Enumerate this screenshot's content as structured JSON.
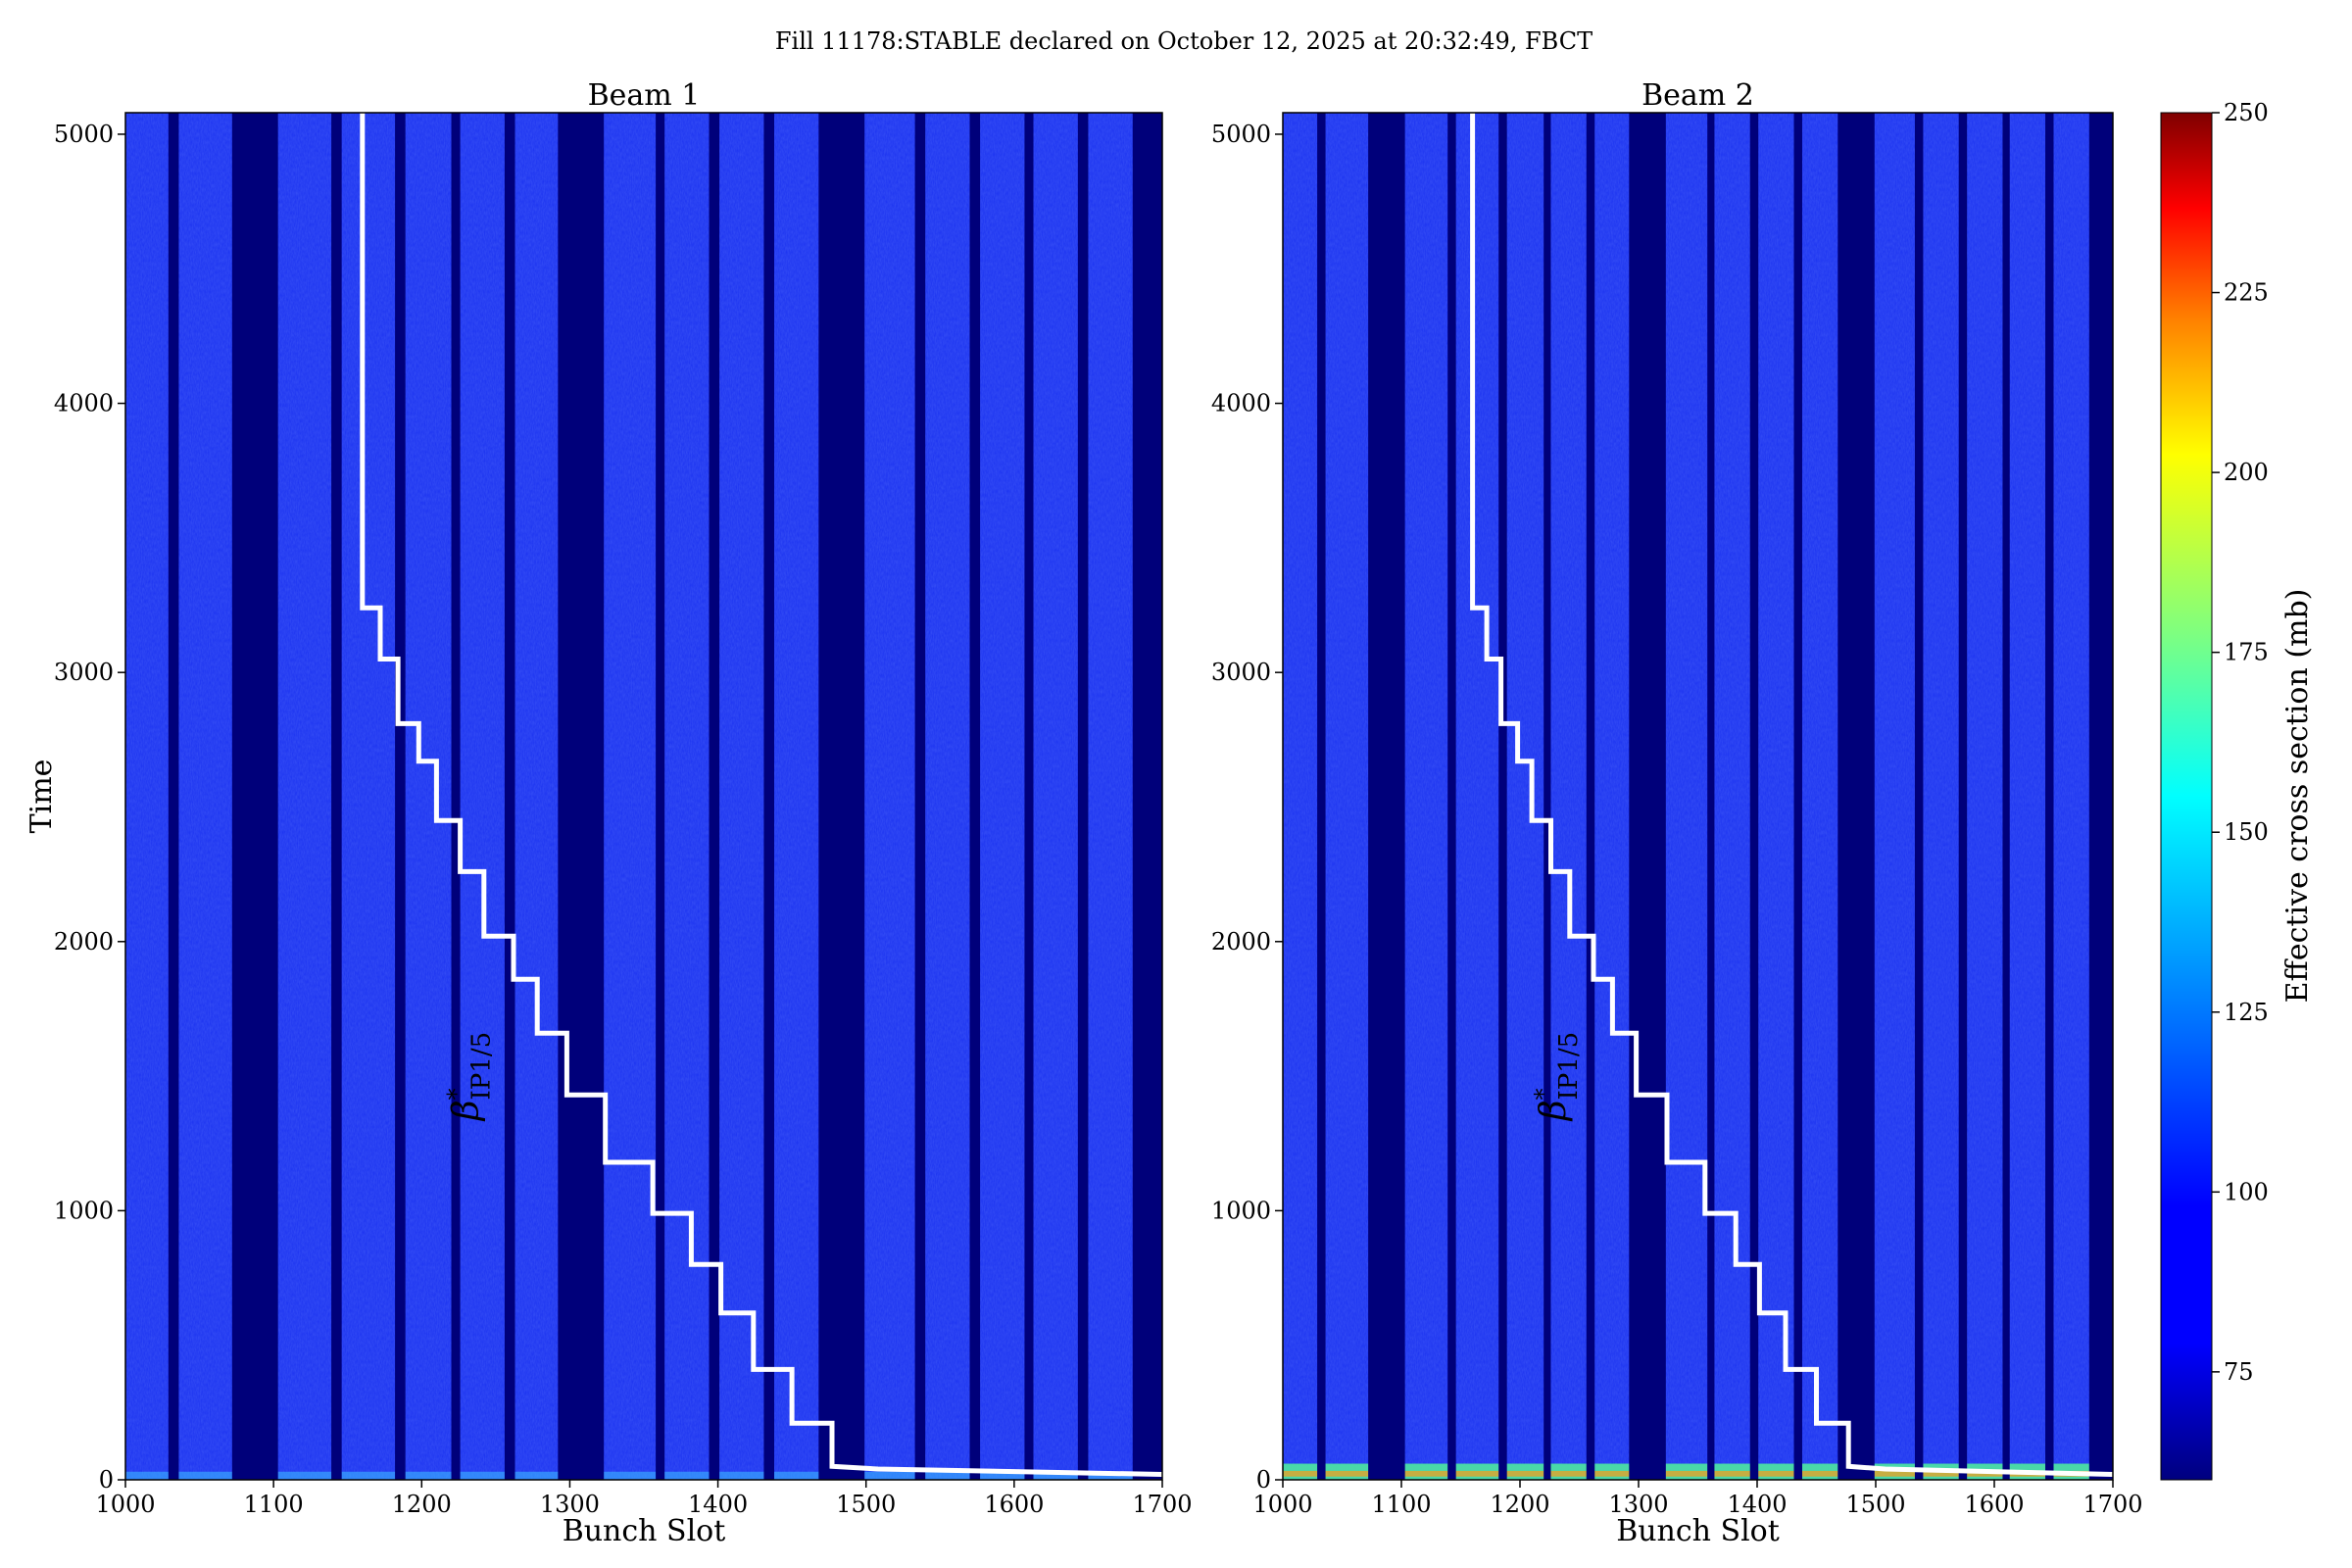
{
  "figure": {
    "suptitle": "Fill 11178:STABLE declared on October 12, 2025 at 20:32:49, FBCT"
  },
  "colors": {
    "background_blue": "#1a31f0",
    "gap_navy": "#00007a",
    "step_line": "#ffffff",
    "colormap": [
      "#00007f",
      "#0000ff",
      "#007fff",
      "#00ffff",
      "#7fff7f",
      "#ffff00",
      "#ff7f00",
      "#ff0000",
      "#7f0000"
    ]
  },
  "chart_data": [
    {
      "type": "heatmap",
      "title": "Beam 1",
      "xlabel": "Bunch Slot",
      "ylabel": "Time",
      "xlim": [
        1000,
        1700
      ],
      "ylim": [
        0,
        5080
      ],
      "xticks": [
        1000,
        1100,
        1200,
        1300,
        1400,
        1500,
        1600,
        1700
      ],
      "yticks": [
        0,
        1000,
        2000,
        3000,
        4000,
        5000
      ],
      "empty_slot_ranges": [
        [
          1029,
          1036
        ],
        [
          1072,
          1103
        ],
        [
          1139,
          1146
        ],
        [
          1182,
          1189
        ],
        [
          1220,
          1226
        ],
        [
          1256,
          1263
        ],
        [
          1292,
          1323
        ],
        [
          1358,
          1364
        ],
        [
          1394,
          1401
        ],
        [
          1431,
          1438
        ],
        [
          1468,
          1499
        ],
        [
          1533,
          1540
        ],
        [
          1570,
          1577
        ],
        [
          1607,
          1613
        ],
        [
          1643,
          1650
        ],
        [
          1680,
          1700
        ]
      ],
      "color_baseline_mb": 85,
      "early_high_band": {
        "time_range": [
          0,
          30
        ],
        "peak_mb": 130
      },
      "step_line": {
        "label": "β*IP1/5",
        "points": [
          [
            1160,
            5080
          ],
          [
            1160,
            3240
          ],
          [
            1172,
            3240
          ],
          [
            1172,
            3050
          ],
          [
            1184,
            3050
          ],
          [
            1184,
            2810
          ],
          [
            1198,
            2810
          ],
          [
            1198,
            2670
          ],
          [
            1210,
            2670
          ],
          [
            1210,
            2450
          ],
          [
            1226,
            2450
          ],
          [
            1226,
            2260
          ],
          [
            1242,
            2260
          ],
          [
            1242,
            2020
          ],
          [
            1262,
            2020
          ],
          [
            1262,
            1860
          ],
          [
            1278,
            1860
          ],
          [
            1278,
            1660
          ],
          [
            1298,
            1660
          ],
          [
            1298,
            1430
          ],
          [
            1324,
            1430
          ],
          [
            1324,
            1180
          ],
          [
            1356,
            1180
          ],
          [
            1356,
            990
          ],
          [
            1382,
            990
          ],
          [
            1382,
            800
          ],
          [
            1402,
            800
          ],
          [
            1402,
            620
          ],
          [
            1424,
            620
          ],
          [
            1424,
            410
          ],
          [
            1450,
            410
          ],
          [
            1450,
            210
          ],
          [
            1477,
            210
          ],
          [
            1477,
            50
          ],
          [
            1508,
            40
          ],
          [
            1700,
            20
          ]
        ]
      }
    },
    {
      "type": "heatmap",
      "title": "Beam 2",
      "xlabel": "Bunch Slot",
      "ylabel": "",
      "xlim": [
        1000,
        1700
      ],
      "ylim": [
        0,
        5080
      ],
      "xticks": [
        1000,
        1100,
        1200,
        1300,
        1400,
        1500,
        1600,
        1700
      ],
      "yticks": [
        0,
        1000,
        2000,
        3000,
        4000,
        5000
      ],
      "empty_slot_ranges": [
        [
          1029,
          1036
        ],
        [
          1072,
          1103
        ],
        [
          1139,
          1146
        ],
        [
          1182,
          1189
        ],
        [
          1220,
          1226
        ],
        [
          1256,
          1263
        ],
        [
          1292,
          1323
        ],
        [
          1358,
          1364
        ],
        [
          1394,
          1401
        ],
        [
          1431,
          1438
        ],
        [
          1468,
          1499
        ],
        [
          1533,
          1540
        ],
        [
          1570,
          1577
        ],
        [
          1607,
          1613
        ],
        [
          1643,
          1650
        ],
        [
          1680,
          1700
        ]
      ],
      "color_baseline_mb": 85,
      "early_high_band": {
        "time_range": [
          0,
          60
        ],
        "peak_mb": 220
      },
      "step_line": {
        "label": "β*IP1/5",
        "points": [
          [
            1160,
            5080
          ],
          [
            1160,
            3240
          ],
          [
            1172,
            3240
          ],
          [
            1172,
            3050
          ],
          [
            1184,
            3050
          ],
          [
            1184,
            2810
          ],
          [
            1198,
            2810
          ],
          [
            1198,
            2670
          ],
          [
            1210,
            2670
          ],
          [
            1210,
            2450
          ],
          [
            1226,
            2450
          ],
          [
            1226,
            2260
          ],
          [
            1242,
            2260
          ],
          [
            1242,
            2020
          ],
          [
            1262,
            2020
          ],
          [
            1262,
            1860
          ],
          [
            1278,
            1860
          ],
          [
            1278,
            1660
          ],
          [
            1298,
            1660
          ],
          [
            1298,
            1430
          ],
          [
            1324,
            1430
          ],
          [
            1324,
            1180
          ],
          [
            1356,
            1180
          ],
          [
            1356,
            990
          ],
          [
            1382,
            990
          ],
          [
            1382,
            800
          ],
          [
            1402,
            800
          ],
          [
            1402,
            620
          ],
          [
            1424,
            620
          ],
          [
            1424,
            410
          ],
          [
            1450,
            410
          ],
          [
            1450,
            210
          ],
          [
            1477,
            210
          ],
          [
            1477,
            50
          ],
          [
            1508,
            40
          ],
          [
            1700,
            20
          ]
        ]
      }
    }
  ],
  "colorbar": {
    "label": "Effective cross section (mb)",
    "range": [
      60,
      250
    ],
    "ticks": [
      75,
      100,
      125,
      150,
      175,
      200,
      225,
      250
    ]
  },
  "annotation": {
    "beta": "β",
    "star": "*",
    "subscript": "IP1/5"
  }
}
